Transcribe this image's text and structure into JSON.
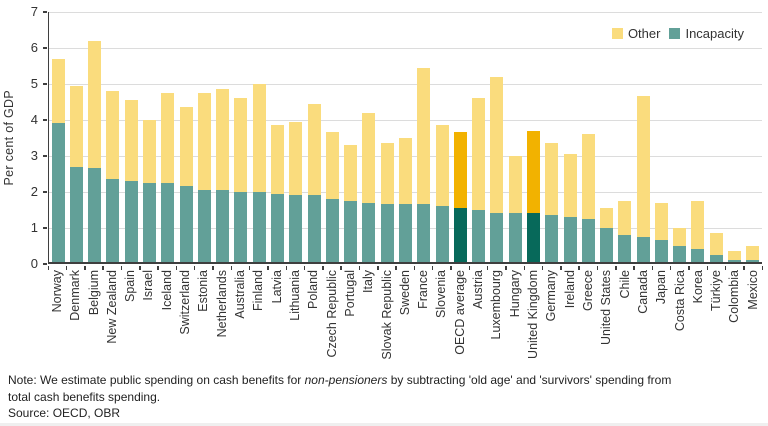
{
  "figure": {
    "ylabel": "Per cent of GDP",
    "note": {
      "prefix": "Note: We estimate public spending on cash benefits for ",
      "italic": "non-pensioners",
      "suffix": " by subtracting 'old age' and 'survivors' spending from",
      "line2": "total cash benefits spending.",
      "source": "Source: OECD, OBR"
    }
  },
  "chart_data": {
    "type": "bar",
    "stacked": true,
    "title": "",
    "xlabel": "",
    "ylabel": "Per cent of GDP",
    "ylim": [
      0,
      7
    ],
    "yticks": [
      0,
      1,
      2,
      3,
      4,
      5,
      6,
      7
    ],
    "grid": true,
    "legend_position": "top-right",
    "categories": [
      "Norway",
      "Denmark",
      "Belgium",
      "New Zealand",
      "Spain",
      "Israel",
      "Iceland",
      "Switzerland",
      "Estonia",
      "Netherlands",
      "Australia",
      "Finland",
      "Latvia",
      "Lithuania",
      "Poland",
      "Czech Republic",
      "Portugal",
      "Italy",
      "Slovak Republic",
      "Sweden",
      "France",
      "Slovenia",
      "OECD average",
      "Austria",
      "Luxembourg",
      "Hungary",
      "United Kingdom",
      "Germany",
      "Ireland",
      "Greece",
      "United States",
      "Chile",
      "Canada",
      "Japan",
      "Costa Rica",
      "Korea",
      "Türkiye",
      "Colombia",
      "Mexico"
    ],
    "series": [
      {
        "name": "Incapacity",
        "color": "#62A098",
        "highlight_color": "#07695A",
        "values": [
          3.85,
          2.65,
          2.6,
          2.3,
          2.25,
          2.2,
          2.2,
          2.1,
          2.0,
          2.0,
          1.95,
          1.95,
          1.9,
          1.85,
          1.85,
          1.75,
          1.7,
          1.65,
          1.6,
          1.6,
          1.6,
          1.55,
          1.5,
          1.45,
          1.35,
          1.35,
          1.35,
          1.3,
          1.25,
          1.2,
          0.95,
          0.75,
          0.7,
          0.6,
          0.45,
          0.35,
          0.2,
          0.05,
          0.05
        ]
      },
      {
        "name": "Other",
        "color": "#FADC7D",
        "highlight_color": "#F2B200",
        "values": [
          1.8,
          2.25,
          3.55,
          2.45,
          2.25,
          1.75,
          2.5,
          2.2,
          2.7,
          2.8,
          2.6,
          3.0,
          1.9,
          2.05,
          2.55,
          1.85,
          1.55,
          2.5,
          1.7,
          1.85,
          3.8,
          2.25,
          2.1,
          3.1,
          3.8,
          1.6,
          2.3,
          2.0,
          1.75,
          2.35,
          0.55,
          0.95,
          3.9,
          1.05,
          0.5,
          1.35,
          0.6,
          0.25,
          0.4
        ]
      }
    ],
    "highlighted_categories": [
      "OECD average",
      "United Kingdom"
    ],
    "axis_color": "#3f3f3f",
    "gridline_color": "#dcdcdc"
  }
}
